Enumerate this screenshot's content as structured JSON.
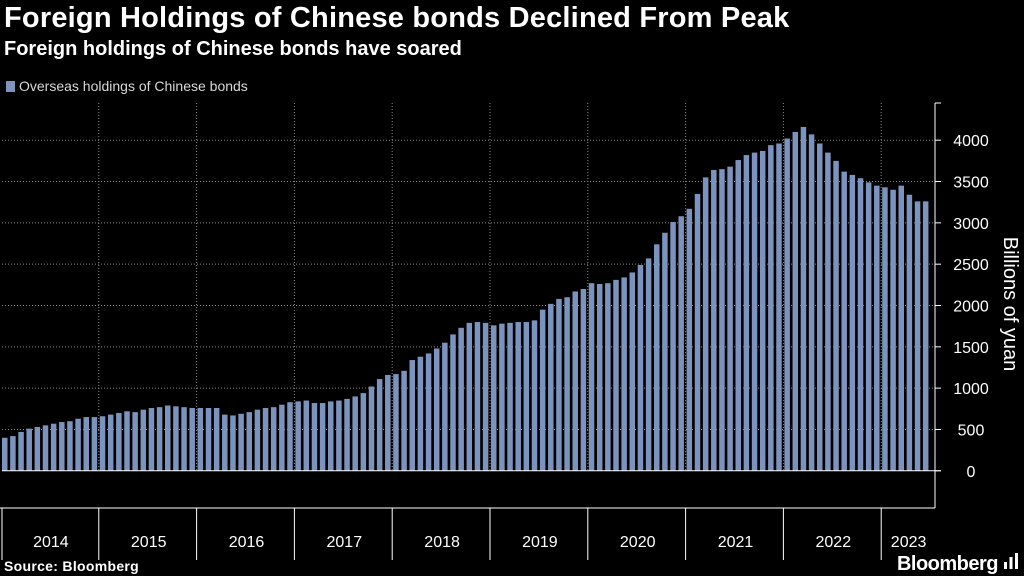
{
  "header": {
    "title": "Foreign Holdings of Chinese bonds Declined From Peak",
    "subtitle": "Foreign holdings of Chinese bonds have soared"
  },
  "legend": {
    "label": "Overseas holdings of Chinese bonds"
  },
  "footer": {
    "source": "Source: Bloomberg",
    "logo": "Bloomberg"
  },
  "colors": {
    "bar": "#7b93bd",
    "background": "#000000",
    "grid": "#8a8a8a"
  },
  "chart_data": {
    "type": "bar",
    "title": "Foreign Holdings of Chinese bonds Declined From Peak",
    "subtitle": "Foreign holdings of Chinese bonds have soared",
    "xlabel": "",
    "ylabel": "Billions of yuan",
    "ylim": [
      -450,
      4450
    ],
    "yticks": [
      0,
      500,
      1000,
      1500,
      2000,
      2500,
      3000,
      3500,
      4000
    ],
    "year_labels": [
      "2014",
      "2015",
      "2016",
      "2017",
      "2018",
      "2019",
      "2020",
      "2021",
      "2022",
      "2023"
    ],
    "start": "2014-01",
    "legend": "Overseas holdings of Chinese bonds",
    "legend_position": "top-left",
    "series": [
      {
        "name": "Overseas holdings of Chinese bonds",
        "values": [
          400,
          420,
          470,
          510,
          530,
          550,
          570,
          590,
          600,
          630,
          650,
          650,
          660,
          680,
          700,
          720,
          710,
          740,
          760,
          770,
          790,
          780,
          770,
          760,
          760,
          760,
          760,
          680,
          670,
          690,
          710,
          740,
          760,
          770,
          800,
          830,
          840,
          850,
          820,
          820,
          840,
          850,
          870,
          900,
          940,
          1020,
          1110,
          1160,
          1170,
          1210,
          1340,
          1380,
          1420,
          1480,
          1550,
          1650,
          1730,
          1790,
          1800,
          1790,
          1760,
          1780,
          1790,
          1800,
          1800,
          1820,
          1950,
          2020,
          2080,
          2100,
          2170,
          2200,
          2270,
          2260,
          2270,
          2310,
          2340,
          2400,
          2490,
          2570,
          2740,
          2880,
          3010,
          3080,
          3170,
          3350,
          3550,
          3640,
          3650,
          3680,
          3760,
          3820,
          3850,
          3870,
          3940,
          3960,
          4020,
          4100,
          4160,
          4070,
          3960,
          3850,
          3750,
          3620,
          3580,
          3540,
          3490,
          3450,
          3430,
          3400,
          3450,
          3340,
          3260,
          3260
        ]
      }
    ]
  }
}
